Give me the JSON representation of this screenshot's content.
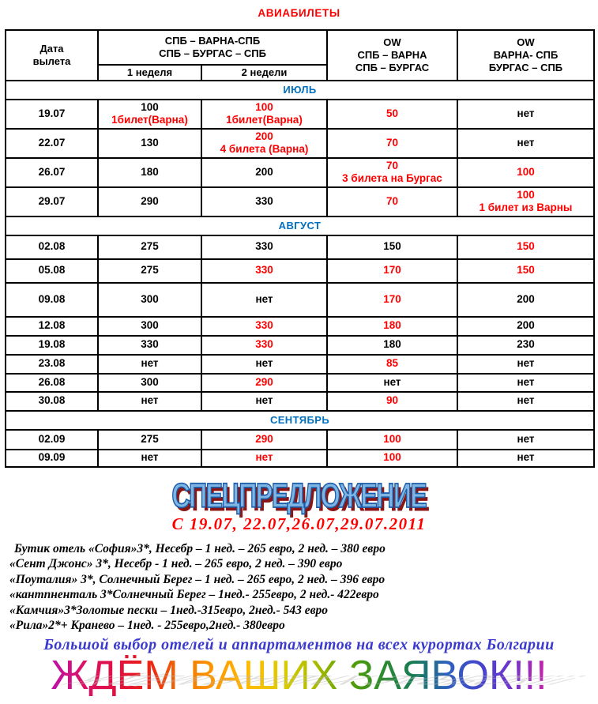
{
  "page": {
    "title": "АВИАБИЛЕТЫ"
  },
  "colors": {
    "red": "#ff0000",
    "month_blue": "#0070c0",
    "wordart_fill": "#7fb5e3",
    "wordart_stroke": "#1a5ca8",
    "wordart_shadow": "#8b1414",
    "promo_blue": "#3a3acd",
    "rainbow_palette": [
      "#bb11aa",
      "#dd1166",
      "#e01040",
      "#ee2211",
      "#f07700",
      "#ff9900",
      "#ffbb00",
      "#ddcc00",
      "#aabb00",
      "#55a000",
      "#2e8b2e",
      "#167a55",
      "#2f5fbf",
      "#4444cc",
      "#7733cc",
      "#cc22aa"
    ]
  },
  "table": {
    "header": {
      "date_col": [
        "Дата",
        "вылета"
      ],
      "roundtrip": [
        "СПБ – ВАРНА-СПБ",
        "СПБ – БУРГАС – СПБ"
      ],
      "subcols": [
        "1 неделя",
        "2 недели"
      ],
      "ow_out": [
        "OW",
        "СПБ – ВАРНА",
        "СПБ – БУРГАС"
      ],
      "ow_ret": [
        "OW",
        "ВАРНА- СПБ",
        "БУРГАС – СПБ"
      ]
    },
    "sections": [
      {
        "month": "ИЮЛЬ",
        "rows": [
          {
            "date": "19.07",
            "cells": [
              {
                "lines": [
                  {
                    "text": "100",
                    "red": false
                  },
                  {
                    "text": "1билет(Варна)",
                    "red": true
                  }
                ]
              },
              {
                "lines": [
                  {
                    "text": "100",
                    "red": true
                  },
                  {
                    "text": "1билет(Варна)",
                    "red": true
                  }
                ]
              },
              {
                "lines": [
                  {
                    "text": "50",
                    "red": true
                  }
                ]
              },
              {
                "lines": [
                  {
                    "text": "нет",
                    "red": false
                  }
                ]
              }
            ]
          },
          {
            "date": "22.07",
            "cells": [
              {
                "lines": [
                  {
                    "text": "130",
                    "red": false
                  }
                ]
              },
              {
                "lines": [
                  {
                    "text": "200",
                    "red": true
                  },
                  {
                    "text": "4 билета (Варна)",
                    "red": true
                  }
                ]
              },
              {
                "lines": [
                  {
                    "text": "70",
                    "red": true
                  }
                ]
              },
              {
                "lines": [
                  {
                    "text": "нет",
                    "red": false
                  }
                ]
              }
            ]
          },
          {
            "date": "26.07",
            "cells": [
              {
                "lines": [
                  {
                    "text": "180",
                    "red": false
                  }
                ]
              },
              {
                "lines": [
                  {
                    "text": "200",
                    "red": false
                  }
                ]
              },
              {
                "lines": [
                  {
                    "text": "70",
                    "red": true
                  },
                  {
                    "text": "3 билета на Бургас",
                    "red": true
                  }
                ]
              },
              {
                "lines": [
                  {
                    "text": "100",
                    "red": true
                  }
                ]
              }
            ]
          },
          {
            "date": "29.07",
            "cells": [
              {
                "lines": [
                  {
                    "text": "290",
                    "red": false
                  }
                ]
              },
              {
                "lines": [
                  {
                    "text": "330",
                    "red": false
                  }
                ]
              },
              {
                "top": true,
                "lines": [
                  {
                    "text": "70",
                    "red": true
                  }
                ]
              },
              {
                "lines": [
                  {
                    "text": "100",
                    "red": true
                  },
                  {
                    "text": "1 билет из Варны",
                    "red": true
                  }
                ]
              }
            ]
          }
        ]
      },
      {
        "month": "АВГУСТ",
        "rows": [
          {
            "date": "02.08",
            "cells": [
              {
                "lines": [
                  {
                    "text": "275",
                    "red": false
                  }
                ]
              },
              {
                "lines": [
                  {
                    "text": "330",
                    "red": false
                  }
                ]
              },
              {
                "lines": [
                  {
                    "text": "150",
                    "red": false
                  }
                ]
              },
              {
                "top": true,
                "lines": [
                  {
                    "text": "150",
                    "red": true
                  }
                ]
              }
            ]
          },
          {
            "date": "05.08",
            "cells": [
              {
                "lines": [
                  {
                    "text": "275",
                    "red": false
                  }
                ]
              },
              {
                "lines": [
                  {
                    "text": "330",
                    "red": true
                  }
                ]
              },
              {
                "lines": [
                  {
                    "text": "170",
                    "red": true
                  }
                ]
              },
              {
                "top": true,
                "lines": [
                  {
                    "text": "150",
                    "red": true
                  }
                ]
              }
            ]
          },
          {
            "date": "09.08",
            "cells": [
              {
                "lines": [
                  {
                    "text": "300",
                    "red": false
                  }
                ]
              },
              {
                "lines": [
                  {
                    "text": "нет",
                    "red": false
                  }
                ]
              },
              {
                "top": true,
                "lines": [
                  {
                    "text": "170",
                    "red": true
                  }
                ]
              },
              {
                "lines": [
                  {
                    "text": "200",
                    "red": false
                  }
                ]
              }
            ]
          },
          {
            "date": "12.08",
            "cells": [
              {
                "lines": [
                  {
                    "text": "300",
                    "red": false
                  }
                ]
              },
              {
                "lines": [
                  {
                    "text": "330",
                    "red": true
                  }
                ]
              },
              {
                "lines": [
                  {
                    "text": "180",
                    "red": true
                  }
                ]
              },
              {
                "lines": [
                  {
                    "text": "200",
                    "red": false
                  }
                ]
              }
            ]
          },
          {
            "date": "19.08",
            "cells": [
              {
                "lines": [
                  {
                    "text": "330",
                    "red": false
                  }
                ]
              },
              {
                "lines": [
                  {
                    "text": "330",
                    "red": true
                  }
                ]
              },
              {
                "lines": [
                  {
                    "text": "180",
                    "red": false
                  }
                ]
              },
              {
                "top": true,
                "lines": [
                  {
                    "text": "230",
                    "red": false
                  }
                ]
              }
            ]
          },
          {
            "date": "23.08",
            "cells": [
              {
                "lines": [
                  {
                    "text": "нет",
                    "red": false
                  }
                ]
              },
              {
                "lines": [
                  {
                    "text": "нет",
                    "red": false
                  }
                ]
              },
              {
                "lines": [
                  {
                    "text": "85",
                    "red": true
                  }
                ]
              },
              {
                "top": true,
                "lines": [
                  {
                    "text": "нет",
                    "red": false
                  }
                ]
              }
            ]
          },
          {
            "date": "26.08",
            "cells": [
              {
                "lines": [
                  {
                    "text": "300",
                    "red": false
                  }
                ]
              },
              {
                "lines": [
                  {
                    "text": "290",
                    "red": true
                  }
                ]
              },
              {
                "lines": [
                  {
                    "text": "нет",
                    "red": false
                  }
                ]
              },
              {
                "top": true,
                "lines": [
                  {
                    "text": "нет",
                    "red": false
                  }
                ]
              }
            ]
          },
          {
            "date": "30.08",
            "cells": [
              {
                "lines": [
                  {
                    "text": "нет",
                    "red": false
                  }
                ]
              },
              {
                "lines": [
                  {
                    "text": "нет",
                    "red": false
                  }
                ]
              },
              {
                "lines": [
                  {
                    "text": "90",
                    "red": true
                  }
                ]
              },
              {
                "top": true,
                "lines": [
                  {
                    "text": "нет",
                    "red": false
                  }
                ]
              }
            ]
          }
        ]
      },
      {
        "month": "СЕНТЯБРЬ",
        "rows": [
          {
            "date": "02.09",
            "cells": [
              {
                "lines": [
                  {
                    "text": "275",
                    "red": false
                  }
                ]
              },
              {
                "lines": [
                  {
                    "text": "290",
                    "red": true
                  }
                ]
              },
              {
                "lines": [
                  {
                    "text": "100",
                    "red": true
                  }
                ]
              },
              {
                "top": true,
                "lines": [
                  {
                    "text": "нет",
                    "red": false
                  }
                ]
              }
            ]
          },
          {
            "date": "09.09",
            "cells": [
              {
                "lines": [
                  {
                    "text": "нет",
                    "red": false
                  }
                ]
              },
              {
                "lines": [
                  {
                    "text": "нет",
                    "red": true
                  }
                ]
              },
              {
                "lines": [
                  {
                    "text": "100",
                    "red": true
                  }
                ]
              },
              {
                "top": true,
                "lines": [
                  {
                    "text": "нет",
                    "red": false
                  }
                ]
              }
            ]
          }
        ]
      }
    ]
  },
  "footer": {
    "wordart": "СПЕЦПРЕДЛОЖЕНИЕ",
    "dates_line": "С 19.07, 22.07,26.07,29.07.2011",
    "offers": [
      "Бутик отель «София»3*, Несебр – 1 нед. – 265 евро, 2 нед. – 380 евро",
      "«Сент Джонс» 3*, Несебр - 1 нед. – 265 евро, 2 нед. – 390 евро",
      "«Поуталия» 3*, Солнечный Берег – 1 нед. – 265 евро, 2 нед. – 396 евро",
      "«кантпненталь 3*Солнечный Берег – 1нед.- 255евро, 2 нед.- 422евро",
      "«Камчия»3*Золотые пески – 1нед.-315евро, 2нед.- 543 евро",
      "«Рила»2*+ Кранево – 1нед. - 255евро,2нед.- 380евро"
    ],
    "promo": "Большой выбор отелей и аппартаментов на всех курортах Болгарии",
    "rainbow": "ЖДЁМ ВАШИХ ЗАЯВОК!!!"
  }
}
